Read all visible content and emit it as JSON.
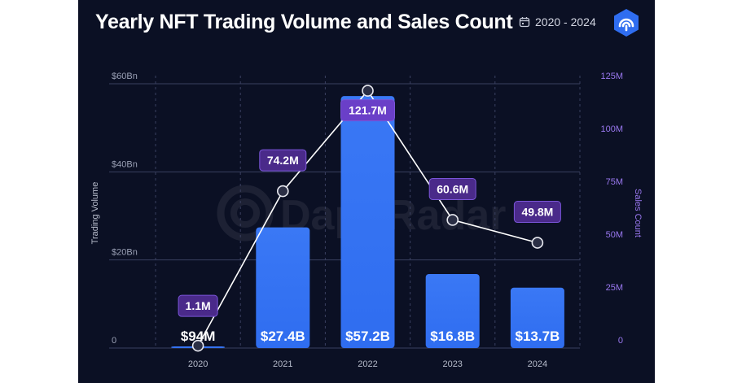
{
  "header": {
    "title": "Yearly NFT Trading Volume and Sales Count",
    "date_range": "2020 - 2024",
    "calendar_icon": "calendar-icon",
    "brand_icon": "dappradar-logo-icon",
    "watermark": "DappRadar"
  },
  "colors": {
    "background": "#0b1024",
    "bar": "#2f6df0",
    "bar_top": "#3a78f5",
    "label_box": "#4a2a8a",
    "label_box_highlight": "#6a3fc8",
    "line": "#ffffff",
    "right_axis": "#8a5cf6",
    "grid": "#3a4060"
  },
  "chart_data": {
    "type": "bar",
    "title": "Yearly NFT Trading Volume and Sales Count",
    "categories": [
      "2020",
      "2021",
      "2022",
      "2023",
      "2024"
    ],
    "ylabel": "Trading Volume",
    "y2label": "Sales Count",
    "ylim": [
      0,
      60
    ],
    "y2lim": [
      0,
      125
    ],
    "yticks": [
      "0",
      "$20Bn",
      "$40Bn",
      "$60Bn"
    ],
    "y2ticks": [
      "0",
      "25M",
      "50M",
      "75M",
      "100M",
      "125M"
    ],
    "series": [
      {
        "name": "Trading Volume",
        "type": "bar",
        "axis": "left",
        "values": [
          0.094,
          27.4,
          57.2,
          16.8,
          13.7
        ],
        "labels": [
          "$94M",
          "$27.4B",
          "$57.2B",
          "$16.8B",
          "$13.7B"
        ]
      },
      {
        "name": "Sales Count",
        "type": "line",
        "axis": "right",
        "values": [
          1.1,
          74.2,
          121.7,
          60.6,
          49.8
        ],
        "labels": [
          "1.1M",
          "74.2M",
          "121.7M",
          "60.6M",
          "49.8M"
        ]
      }
    ]
  }
}
